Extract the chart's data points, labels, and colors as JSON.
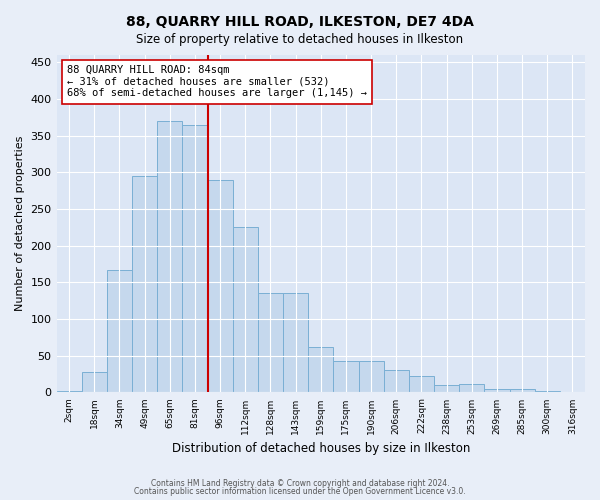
{
  "title": "88, QUARRY HILL ROAD, ILKESTON, DE7 4DA",
  "subtitle": "Size of property relative to detached houses in Ilkeston",
  "xlabel": "Distribution of detached houses by size in Ilkeston",
  "ylabel": "Number of detached properties",
  "categories": [
    "2sqm",
    "18sqm",
    "34sqm",
    "49sqm",
    "65sqm",
    "81sqm",
    "96sqm",
    "112sqm",
    "128sqm",
    "143sqm",
    "159sqm",
    "175sqm",
    "190sqm",
    "206sqm",
    "222sqm",
    "238sqm",
    "253sqm",
    "269sqm",
    "285sqm",
    "300sqm",
    "316sqm"
  ],
  "values": [
    2,
    28,
    167,
    295,
    370,
    365,
    290,
    225,
    135,
    135,
    62,
    43,
    43,
    30,
    22,
    10,
    11,
    5,
    5,
    2,
    1
  ],
  "bar_color": "#c5d8ed",
  "bar_edge_color": "#7aafd4",
  "vline_color": "#cc0000",
  "annotation_text": "88 QUARRY HILL ROAD: 84sqm\n← 31% of detached houses are smaller (532)\n68% of semi-detached houses are larger (1,145) →",
  "annotation_box_color": "#ffffff",
  "annotation_box_edge": "#cc0000",
  "ylim": [
    0,
    460
  ],
  "yticks": [
    0,
    50,
    100,
    150,
    200,
    250,
    300,
    350,
    400,
    450
  ],
  "footer1": "Contains HM Land Registry data © Crown copyright and database right 2024.",
  "footer2": "Contains public sector information licensed under the Open Government Licence v3.0.",
  "bg_color": "#e8eef8",
  "plot_bg_color": "#dce6f5"
}
